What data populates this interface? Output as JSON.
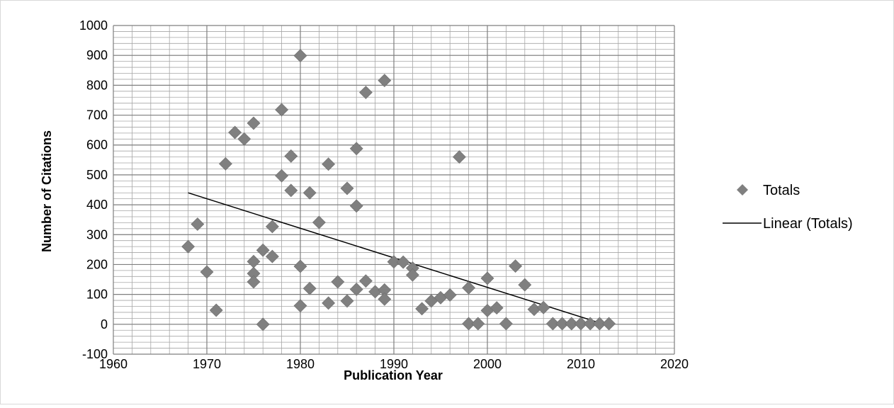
{
  "chart_data": {
    "type": "scatter",
    "title": "",
    "xlabel": "Publication Year",
    "ylabel": "Number of Citations",
    "xlim": [
      1960,
      2020
    ],
    "ylim": [
      -100,
      1000
    ],
    "x_major_step": 10,
    "x_minor_step": 2,
    "y_major_step": 100,
    "y_minor_step": 20,
    "grid": true,
    "legend_position": "right",
    "series": [
      {
        "name": "Totals",
        "kind": "scatter",
        "marker": "diamond",
        "color": "#808080",
        "points": [
          [
            1968,
            260
          ],
          [
            1969,
            335
          ],
          [
            1970,
            175
          ],
          [
            1971,
            47
          ],
          [
            1972,
            537
          ],
          [
            1973,
            642
          ],
          [
            1974,
            620
          ],
          [
            1975,
            673
          ],
          [
            1975,
            210
          ],
          [
            1975,
            170
          ],
          [
            1975,
            142
          ],
          [
            1976,
            0
          ],
          [
            1976,
            248
          ],
          [
            1977,
            327
          ],
          [
            1977,
            227
          ],
          [
            1978,
            718
          ],
          [
            1978,
            497
          ],
          [
            1979,
            563
          ],
          [
            1979,
            448
          ],
          [
            1980,
            899
          ],
          [
            1980,
            194
          ],
          [
            1980,
            62
          ],
          [
            1981,
            440
          ],
          [
            1981,
            120
          ],
          [
            1982,
            341
          ],
          [
            1983,
            536
          ],
          [
            1983,
            71
          ],
          [
            1984,
            142
          ],
          [
            1985,
            455
          ],
          [
            1985,
            78
          ],
          [
            1986,
            588
          ],
          [
            1986,
            396
          ],
          [
            1986,
            117
          ],
          [
            1987,
            776
          ],
          [
            1987,
            145
          ],
          [
            1988,
            109
          ],
          [
            1989,
            816
          ],
          [
            1989,
            115
          ],
          [
            1989,
            84
          ],
          [
            1990,
            209
          ],
          [
            1991,
            208
          ],
          [
            1992,
            188
          ],
          [
            1992,
            165
          ],
          [
            1993,
            52
          ],
          [
            1994,
            78
          ],
          [
            1995,
            89
          ],
          [
            1996,
            98
          ],
          [
            1997,
            560
          ],
          [
            1998,
            122
          ],
          [
            1998,
            2
          ],
          [
            1999,
            2
          ],
          [
            2000,
            154
          ],
          [
            2000,
            46
          ],
          [
            2001,
            55
          ],
          [
            2002,
            2
          ],
          [
            2003,
            195
          ],
          [
            2004,
            132
          ],
          [
            2005,
            50
          ],
          [
            2006,
            56
          ],
          [
            2007,
            2
          ],
          [
            2008,
            2
          ],
          [
            2009,
            2
          ],
          [
            2010,
            2
          ],
          [
            2011,
            2
          ],
          [
            2012,
            2
          ],
          [
            2013,
            2
          ]
        ]
      },
      {
        "name": "Linear (Totals)",
        "kind": "trendline",
        "color": "#000000",
        "points": [
          [
            1968,
            440
          ],
          [
            2013,
            -5
          ]
        ]
      }
    ]
  }
}
